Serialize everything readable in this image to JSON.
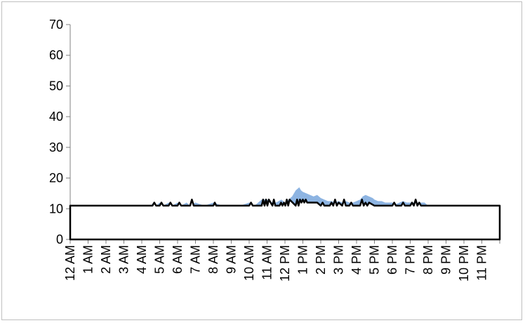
{
  "chart_data": {
    "type": "area",
    "title": "",
    "xlabel": "",
    "ylabel": "",
    "ylim": [
      0,
      70
    ],
    "y_ticks": [
      "0",
      "10",
      "20",
      "30",
      "40",
      "50",
      "60",
      "70"
    ],
    "x_range_hours": [
      0,
      24
    ],
    "x_tick_labels": [
      "12 AM",
      "1 AM",
      "2 AM",
      "3 AM",
      "4 AM",
      "5 AM",
      "6 AM",
      "7 AM",
      "8 AM",
      "9 AM",
      "10 AM",
      "11 AM",
      "12 PM",
      "1 PM",
      "2 PM",
      "3 PM",
      "4 PM",
      "5 PM",
      "6 PM",
      "7 PM",
      "8 PM",
      "9 PM",
      "10 PM",
      "11 PM"
    ],
    "grid": false,
    "legend": "none",
    "colors": {
      "area": "#8db4e2",
      "line": "#000000",
      "axis": "#808080"
    },
    "series": [
      {
        "kind": "area",
        "x": [
          0,
          4.5,
          4.65,
          4.8,
          5.0,
          5.2,
          5.5,
          5.7,
          6.0,
          6.2,
          6.5,
          6.7,
          7.0,
          7.5,
          8.0,
          8.5,
          9.0,
          9.5,
          10.0,
          10.3,
          10.5,
          10.7,
          11.0,
          11.3,
          11.5,
          11.8,
          12.0,
          12.2,
          12.4,
          12.5,
          12.6,
          12.7,
          12.8,
          12.9,
          13.0,
          13.2,
          13.4,
          13.6,
          13.8,
          14.0,
          14.2,
          14.4,
          14.6,
          14.8,
          15.0,
          15.2,
          15.4,
          15.6,
          15.8,
          16.0,
          16.2,
          16.35,
          16.5,
          16.7,
          16.9,
          17.0,
          17.2,
          17.4,
          17.6,
          17.8,
          18.0,
          18.2,
          18.4,
          18.6,
          18.8,
          19.0,
          19.3,
          19.6,
          19.8,
          20.0,
          21.0,
          22.0,
          23.0,
          24.0
        ],
        "values": [
          11,
          11,
          12,
          11,
          12,
          11,
          12,
          11,
          12,
          11,
          12,
          11,
          12,
          11,
          12,
          11,
          11,
          11,
          12,
          11,
          12,
          13,
          13,
          12,
          12,
          13,
          12,
          13,
          14,
          15,
          16,
          16.5,
          17,
          16,
          15.5,
          15,
          14.5,
          14,
          14.5,
          13.5,
          13,
          12.5,
          12.5,
          12,
          12.5,
          12,
          12.5,
          12,
          12,
          12.5,
          13,
          14,
          14.5,
          14,
          13.5,
          13,
          12.5,
          12.5,
          12,
          12,
          12,
          11.5,
          12,
          12.5,
          12,
          12,
          12,
          12,
          12,
          11,
          11,
          11,
          11,
          11
        ]
      },
      {
        "kind": "line",
        "x": [
          0,
          4.6,
          4.7,
          4.8,
          5.0,
          5.1,
          5.2,
          5.5,
          5.6,
          5.7,
          6.0,
          6.1,
          6.2,
          6.7,
          6.8,
          6.9,
          8.0,
          8.08,
          8.16,
          10.0,
          10.1,
          10.2,
          10.7,
          10.78,
          10.86,
          10.94,
          11.02,
          11.1,
          11.3,
          11.38,
          11.46,
          11.7,
          11.78,
          11.86,
          11.94,
          12.02,
          12.1,
          12.18,
          12.26,
          12.6,
          12.68,
          12.76,
          12.84,
          12.92,
          13.0,
          13.08,
          13.16,
          13.24,
          13.3,
          13.5,
          13.8,
          14.0,
          14.1,
          14.2,
          14.5,
          14.6,
          14.7,
          14.8,
          14.9,
          15.0,
          15.2,
          15.3,
          15.4,
          15.6,
          15.7,
          15.8,
          16.2,
          16.3,
          16.4,
          16.5,
          16.6,
          16.7,
          17.0,
          18.0,
          18.1,
          18.2,
          18.5,
          18.6,
          18.7,
          19.0,
          19.1,
          19.2,
          19.3,
          19.4,
          19.5,
          19.6,
          24.0
        ],
        "values": [
          11,
          11,
          12,
          11,
          11,
          12,
          11,
          11,
          12,
          11,
          11,
          12,
          11,
          11,
          13,
          11,
          11,
          12,
          11,
          11,
          12,
          11,
          11,
          13,
          11,
          13,
          11,
          13,
          11,
          13,
          11,
          11,
          12,
          11,
          12,
          11,
          13,
          11,
          13,
          11,
          13,
          11,
          13,
          12,
          13,
          12,
          13,
          12,
          12,
          12,
          12,
          11,
          12,
          11,
          11,
          12,
          11,
          13,
          11,
          12,
          11,
          13,
          11,
          11,
          12,
          11,
          11,
          13,
          11,
          12,
          11,
          12,
          11,
          11,
          12,
          11,
          11,
          12,
          11,
          11,
          12,
          11,
          13,
          11,
          12,
          11,
          11
        ]
      }
    ]
  }
}
